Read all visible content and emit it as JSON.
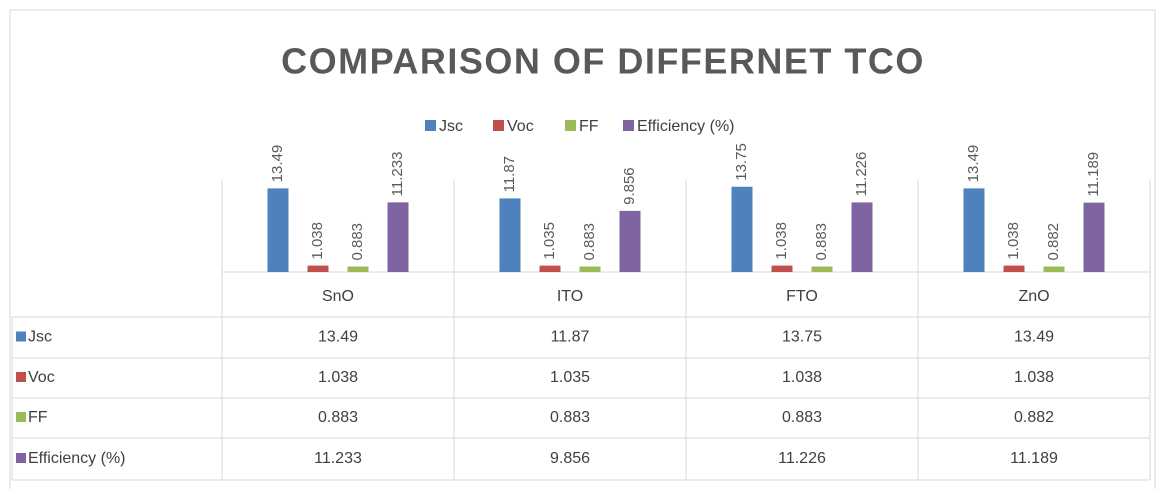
{
  "chart_data": {
    "type": "bar",
    "title": "COMPARISON OF DIFFERNET TCO",
    "categories": [
      "SnO",
      "ITO",
      "FTO",
      "ZnO"
    ],
    "series": [
      {
        "name": "Jsc",
        "color": "#4f81bd",
        "values": [
          13.49,
          11.87,
          13.75,
          13.49
        ]
      },
      {
        "name": "Voc",
        "color": "#c0504d",
        "values": [
          1.038,
          1.035,
          1.038,
          1.038
        ]
      },
      {
        "name": "FF",
        "color": "#9bbb59",
        "values": [
          0.883,
          0.883,
          0.883,
          0.882
        ]
      },
      {
        "name": "Efficiency (%)",
        "color": "#8064a2",
        "values": [
          11.233,
          9.856,
          11.226,
          11.189
        ]
      }
    ],
    "ylim": [
      0,
      15
    ],
    "legend": "top",
    "data_table": true
  }
}
